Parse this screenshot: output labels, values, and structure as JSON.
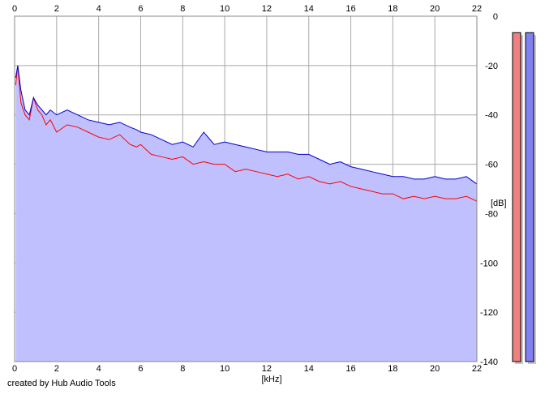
{
  "chart_data": {
    "type": "area",
    "title": "",
    "xlabel": "[kHz]",
    "ylabel": "[dB]",
    "xlim": [
      0,
      22
    ],
    "ylim": [
      -140,
      0
    ],
    "x_ticks": [
      0,
      2,
      4,
      6,
      8,
      10,
      12,
      14,
      16,
      18,
      20,
      22
    ],
    "y_ticks": [
      0,
      -20,
      -40,
      -60,
      -80,
      -100,
      -120,
      -140
    ],
    "grid": true,
    "series": [
      {
        "color": "#ff0000",
        "x": [
          0.05,
          0.15,
          0.3,
          0.5,
          0.7,
          0.9,
          1.1,
          1.3,
          1.5,
          1.7,
          2.0,
          2.5,
          3.0,
          3.5,
          4.0,
          4.5,
          5.0,
          5.5,
          5.8,
          6.0,
          6.5,
          7.0,
          7.5,
          8.0,
          8.5,
          9.0,
          9.5,
          10.0,
          10.5,
          11.0,
          11.5,
          12.0,
          12.5,
          13.0,
          13.5,
          14.0,
          14.5,
          15.0,
          15.5,
          16.0,
          16.5,
          17.0,
          17.5,
          18.0,
          18.5,
          19.0,
          19.5,
          20.0,
          20.5,
          21.0,
          21.5,
          22.0
        ],
        "values": [
          -28,
          -20,
          -35,
          -40,
          -42,
          -33,
          -38,
          -40,
          -44,
          -42,
          -47,
          -44,
          -45,
          -47,
          -49,
          -50,
          -48,
          -52,
          -53,
          -52,
          -56,
          -57,
          -58,
          -57,
          -60,
          -59,
          -60,
          -60,
          -63,
          -62,
          -63,
          -64,
          -65,
          -64,
          -66,
          -65,
          -67,
          -68,
          -67,
          -69,
          -70,
          -71,
          -72,
          -72,
          -74,
          -73,
          -74,
          -73,
          -74,
          -74,
          -73,
          -75
        ]
      },
      {
        "color": "#0000cc",
        "x": [
          0.05,
          0.15,
          0.3,
          0.5,
          0.7,
          0.9,
          1.1,
          1.3,
          1.5,
          1.7,
          2.0,
          2.5,
          3.0,
          3.5,
          4.0,
          4.5,
          5.0,
          5.5,
          5.8,
          6.0,
          6.5,
          7.0,
          7.5,
          8.0,
          8.5,
          9.0,
          9.5,
          10.0,
          10.5,
          11.0,
          11.5,
          12.0,
          12.5,
          13.0,
          13.5,
          14.0,
          14.5,
          15.0,
          15.5,
          16.0,
          16.5,
          17.0,
          17.5,
          18.0,
          18.5,
          19.0,
          19.5,
          20.0,
          20.5,
          21.0,
          21.5,
          22.0
        ],
        "values": [
          -25,
          -20,
          -30,
          -38,
          -40,
          -33,
          -36,
          -38,
          -40,
          -38,
          -40,
          -38,
          -40,
          -42,
          -43,
          -44,
          -43,
          -45,
          -46,
          -47,
          -48,
          -50,
          -52,
          -51,
          -53,
          -47,
          -52,
          -51,
          -52,
          -53,
          -54,
          -55,
          -55,
          -55,
          -56,
          -56,
          -58,
          -60,
          -59,
          -61,
          -62,
          -63,
          -64,
          -65,
          -65,
          -66,
          -66,
          -65,
          -66,
          -66,
          -65,
          -68
        ]
      }
    ]
  },
  "meters": [
    {
      "color": "#f08080",
      "level": 0.98
    },
    {
      "color": "#8080f0",
      "level": 0.98
    }
  ],
  "footer": {
    "credit": "created by Hub Audio Tools"
  }
}
